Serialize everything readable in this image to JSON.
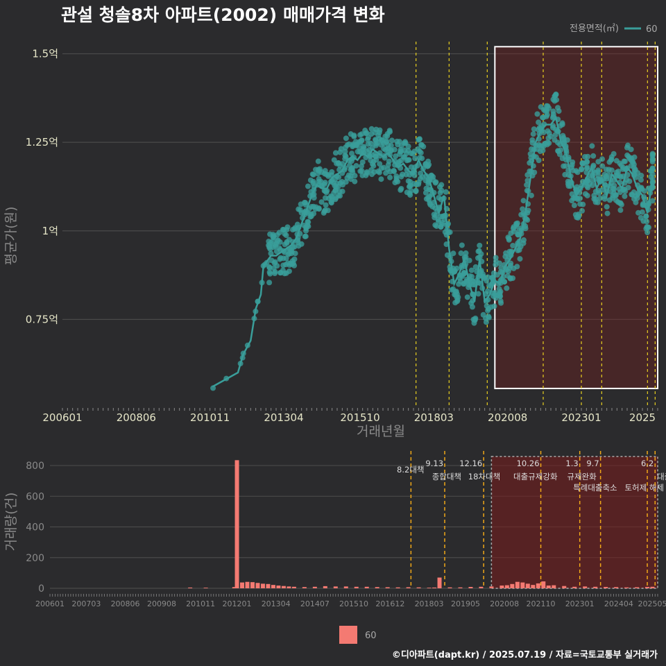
{
  "title": "관설 청솔8차 아파트(2002) 매매가격 변화",
  "caption": "©디아파트(dapt.kr) / 2025.07.19 / 자료=국토교통부 실거래가",
  "colors": {
    "background": "#2b2b2d",
    "price": "#3a9e9a",
    "volume": "#f47a72",
    "policy_top": "#e8d020",
    "policy_bottom": "#f0a818",
    "highlight": "#7a1c1c"
  },
  "chart_data": [
    {
      "type": "scatter",
      "title": "관설 청솔8차 아파트(2002) 매매가격 변화",
      "xlabel": "거래년월",
      "ylabel": "평균가(원)",
      "xlim": [
        "2006-01",
        "2025-07"
      ],
      "ylim": [
        0.5,
        1.55
      ],
      "x_ticks": [
        "200601",
        "200806",
        "201011",
        "201304",
        "201510",
        "201803",
        "202008",
        "202301",
        "2025"
      ],
      "y_ticks": [
        {
          "value": 0.75,
          "label": "0.75억"
        },
        {
          "value": 1.0,
          "label": "1억"
        },
        {
          "value": 1.25,
          "label": "1.25억"
        },
        {
          "value": 1.5,
          "label": "1.5억"
        }
      ],
      "legend": {
        "title": "전용면적(㎡)",
        "entries": [
          "60"
        ],
        "position": "top-right"
      },
      "series": [
        {
          "name": "60",
          "unit": "억원",
          "x": [
            "2010-12",
            "2011-10",
            "2011-12",
            "2012-03",
            "2012-05",
            "2012-07",
            "2012-08",
            "2012-10",
            "2012-11",
            "2013-01",
            "2013-03",
            "2013-05",
            "2013-07",
            "2013-09",
            "2013-11",
            "2014-01",
            "2014-03",
            "2014-05",
            "2014-07",
            "2014-09",
            "2014-11",
            "2015-01",
            "2015-03",
            "2015-05",
            "2015-07",
            "2015-09",
            "2015-11",
            "2016-01",
            "2016-03",
            "2016-05",
            "2016-07",
            "2016-09",
            "2016-11",
            "2017-01",
            "2017-03",
            "2017-05",
            "2017-07",
            "2017-09",
            "2017-11",
            "2018-01",
            "2018-03",
            "2018-05",
            "2018-07",
            "2018-09",
            "2018-11",
            "2019-01",
            "2019-03",
            "2019-05",
            "2019-07",
            "2019-09",
            "2019-11",
            "2020-01",
            "2020-03",
            "2020-05",
            "2020-07",
            "2020-09",
            "2020-11",
            "2021-01",
            "2021-03",
            "2021-05",
            "2021-07",
            "2021-09",
            "2021-11",
            "2022-01",
            "2022-03",
            "2022-05",
            "2022-07",
            "2022-09",
            "2022-11",
            "2023-01",
            "2023-03",
            "2023-05",
            "2023-07",
            "2023-09",
            "2023-11",
            "2024-01",
            "2024-03",
            "2024-05",
            "2024-07",
            "2024-09",
            "2024-11",
            "2025-01",
            "2025-03",
            "2025-05"
          ],
          "y": [
            0.56,
            0.6,
            0.65,
            0.69,
            0.78,
            0.82,
            0.9,
            0.92,
            0.93,
            0.93,
            0.94,
            0.95,
            0.96,
            0.98,
            1.02,
            1.06,
            1.1,
            1.13,
            1.12,
            1.12,
            1.15,
            1.16,
            1.17,
            1.2,
            1.21,
            1.2,
            1.22,
            1.21,
            1.23,
            1.22,
            1.21,
            1.22,
            1.2,
            1.18,
            1.19,
            1.17,
            1.16,
            1.2,
            1.17,
            1.15,
            1.1,
            1.05,
            1.1,
            0.95,
            0.85,
            0.88,
            0.92,
            0.85,
            0.8,
            0.92,
            0.8,
            0.82,
            0.86,
            0.85,
            0.9,
            0.92,
            0.95,
            0.98,
            1.05,
            1.15,
            1.25,
            1.28,
            1.3,
            1.3,
            1.32,
            1.25,
            1.22,
            1.15,
            1.1,
            1.12,
            1.15,
            1.18,
            1.12,
            1.15,
            1.1,
            1.16,
            1.14,
            1.12,
            1.18,
            1.16,
            1.12,
            1.1,
            1.05,
            1.15
          ]
        }
      ]
    },
    {
      "type": "bar",
      "xlabel": "",
      "ylabel": "거래량(건)",
      "ylim": [
        0,
        850
      ],
      "x_ticks": [
        "200601",
        "200703",
        "200806",
        "200908",
        "201011",
        "201201",
        "201304",
        "201407",
        "201510",
        "201612",
        "201803",
        "201905",
        "202008",
        "202110",
        "202301",
        "202404",
        "202505"
      ],
      "y_ticks": [
        0,
        200,
        400,
        600,
        800
      ],
      "legend": {
        "entries": [
          "60"
        ],
        "position": "bottom"
      },
      "series": [
        {
          "name": "60",
          "x": [
            "2010-07",
            "2011-01",
            "2011-12",
            "2012-01",
            "2012-03",
            "2012-05",
            "2012-07",
            "2012-09",
            "2012-11",
            "2013-01",
            "2013-03",
            "2013-05",
            "2013-07",
            "2013-09",
            "2013-11",
            "2014-03",
            "2014-07",
            "2014-11",
            "2015-03",
            "2015-07",
            "2015-11",
            "2016-03",
            "2016-07",
            "2016-11",
            "2017-03",
            "2017-07",
            "2017-11",
            "2018-03",
            "2018-05",
            "2018-07",
            "2018-11",
            "2019-03",
            "2019-07",
            "2019-11",
            "2020-03",
            "2020-07",
            "2020-09",
            "2020-11",
            "2021-01",
            "2021-03",
            "2021-05",
            "2021-07",
            "2021-09",
            "2021-11",
            "2022-01",
            "2022-03",
            "2022-07",
            "2022-11",
            "2023-03",
            "2023-07",
            "2023-11",
            "2024-03",
            "2024-07",
            "2024-11",
            "2025-03",
            "2025-05"
          ],
          "values": [
            5,
            4,
            8,
            835,
            38,
            42,
            40,
            35,
            30,
            28,
            22,
            18,
            15,
            12,
            10,
            8,
            10,
            14,
            12,
            12,
            10,
            10,
            8,
            7,
            6,
            7,
            6,
            4,
            5,
            70,
            6,
            6,
            9,
            10,
            12,
            18,
            20,
            28,
            42,
            38,
            30,
            22,
            32,
            45,
            18,
            20,
            15,
            10,
            12,
            10,
            9,
            8,
            6,
            7,
            9,
            10
          ]
        }
      ]
    }
  ],
  "policies": [
    {
      "date": "2017-08",
      "label_date": "8.2",
      "label_text": "대책"
    },
    {
      "date": "2018-09",
      "label_date": "9.13",
      "label_text": "종합대책"
    },
    {
      "date": "2019-12",
      "label_date": "12.16",
      "label_text": "18차대책"
    },
    {
      "date": "2021-10",
      "label_date": "10.26",
      "label_text": "대출규제강화"
    },
    {
      "date": "2023-01",
      "label_date": "1.3",
      "label_text": "규제완화"
    },
    {
      "date": "2023-09",
      "label_date": "9.7",
      "label_text": "특례대출축소"
    },
    {
      "date": "2025-03",
      "label_date": "",
      "label_text": "토허제 해제"
    },
    {
      "date": "2025-06",
      "label_date": "6.2",
      "label_text": "대출"
    }
  ]
}
